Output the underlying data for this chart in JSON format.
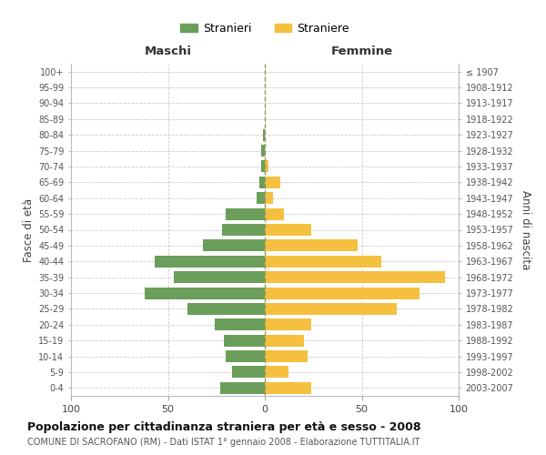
{
  "age_groups": [
    "100+",
    "95-99",
    "90-94",
    "85-89",
    "80-84",
    "75-79",
    "70-74",
    "65-69",
    "60-64",
    "55-59",
    "50-54",
    "45-49",
    "40-44",
    "35-39",
    "30-34",
    "25-29",
    "20-24",
    "15-19",
    "10-14",
    "5-9",
    "0-4"
  ],
  "birth_years": [
    "≤ 1907",
    "1908-1912",
    "1913-1917",
    "1918-1922",
    "1923-1927",
    "1928-1932",
    "1933-1937",
    "1938-1942",
    "1943-1947",
    "1948-1952",
    "1953-1957",
    "1958-1962",
    "1963-1967",
    "1968-1972",
    "1973-1977",
    "1978-1982",
    "1983-1987",
    "1988-1992",
    "1993-1997",
    "1998-2002",
    "2003-2007"
  ],
  "males": [
    0,
    0,
    0,
    0,
    1,
    2,
    2,
    3,
    4,
    20,
    22,
    32,
    57,
    47,
    62,
    40,
    26,
    21,
    20,
    17,
    23
  ],
  "females": [
    0,
    0,
    0,
    0,
    0,
    0,
    2,
    8,
    4,
    10,
    24,
    48,
    60,
    93,
    80,
    68,
    24,
    20,
    22,
    12,
    24
  ],
  "male_color": "#6a9e5a",
  "female_color": "#f5c040",
  "male_label": "Stranieri",
  "female_label": "Straniere",
  "title": "Popolazione per cittadinanza straniera per età e sesso - 2008",
  "subtitle": "COMUNE DI SACROFANO (RM) - Dati ISTAT 1° gennaio 2008 - Elaborazione TUTTITALIA.IT",
  "header_left": "Maschi",
  "header_right": "Femmine",
  "ylabel_left": "Fasce di età",
  "ylabel_right": "Anni di nascita",
  "xlim": 100,
  "xticks": [
    -100,
    -50,
    0,
    50,
    100
  ],
  "background_color": "#ffffff",
  "grid_color": "#cccccc",
  "center_line_color": "#999955",
  "bar_height": 0.75
}
